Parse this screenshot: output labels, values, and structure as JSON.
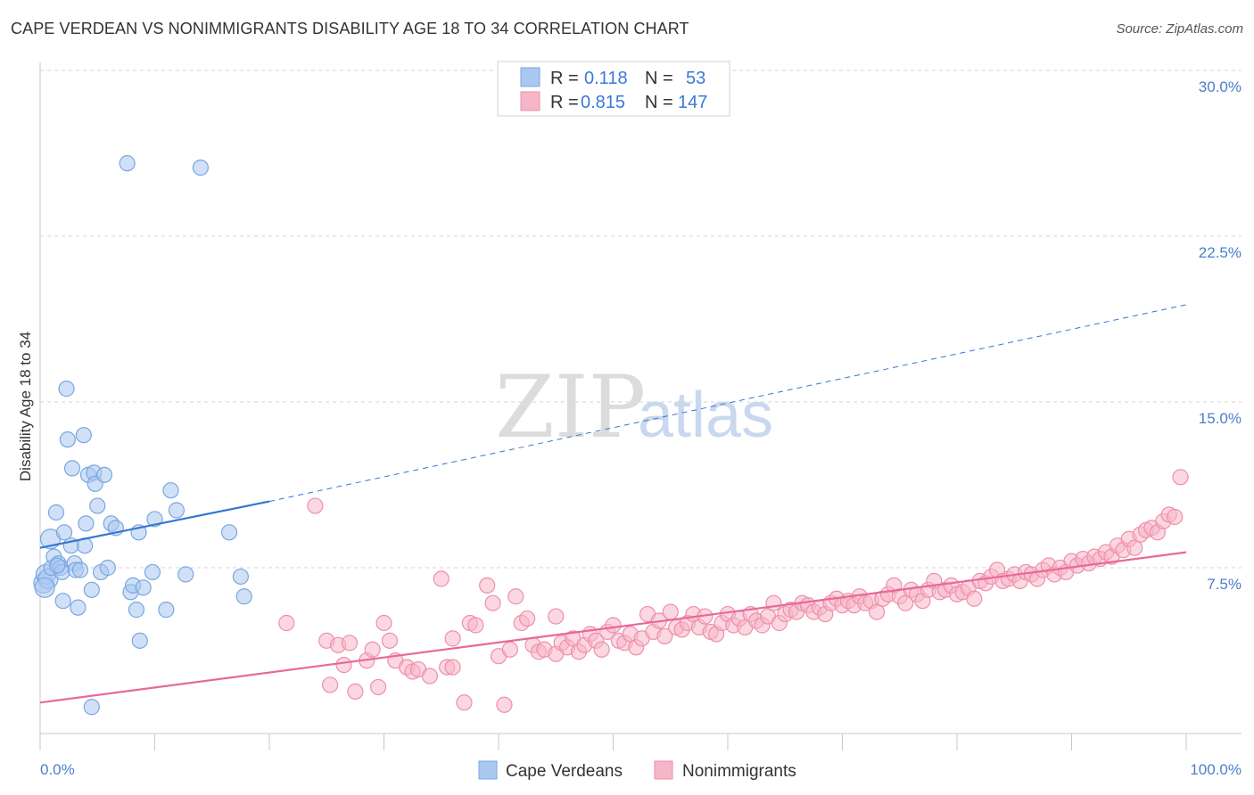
{
  "header": {
    "title": "CAPE VERDEAN VS NONIMMIGRANTS DISABILITY AGE 18 TO 34 CORRELATION CHART",
    "source": "Source: ZipAtlas.com"
  },
  "watermark": {
    "part1": "ZIP",
    "part2": "atlas"
  },
  "legend_top": [
    {
      "r_label": "R =",
      "r_value": "0.118",
      "n_label": "N =",
      "n_value": "53",
      "color": "#a9c8f0"
    },
    {
      "r_label": "R =",
      "r_value": "0.815",
      "n_label": "N =",
      "n_value": "147",
      "color": "#f7b6c8"
    }
  ],
  "legend_bottom": [
    {
      "label": "Cape Verdeans",
      "color": "#a9c8f0"
    },
    {
      "label": "Nonimmigrants",
      "color": "#f7b6c8"
    }
  ],
  "colors": {
    "blue_fill": "#a9c8f0",
    "blue_stroke": "#7aa6df",
    "blue_line": "#3576d3",
    "pink_fill": "#f7b6c8",
    "pink_stroke": "#ee8fab",
    "pink_line": "#e8689a",
    "tick_text": "#4a7fc8",
    "grid": "#d5d5d5"
  },
  "chart_data": {
    "type": "scatter",
    "title": "CAPE VERDEAN VS NONIMMIGRANTS DISABILITY AGE 18 TO 34 CORRELATION CHART",
    "xlabel": "",
    "ylabel": "Disability Age 18 to 34",
    "xlim": [
      0,
      100
    ],
    "ylim": [
      0,
      30
    ],
    "x_tick_labels": [
      "0.0%",
      "100.0%"
    ],
    "y_ticks": [
      7.5,
      15.0,
      22.5,
      30.0
    ],
    "y_tick_labels": [
      "7.5%",
      "15.0%",
      "22.5%",
      "30.0%"
    ],
    "grid": "horizontal dashed",
    "legend": "top-center",
    "series": [
      {
        "name": "Cape Verdeans",
        "R": 0.118,
        "N": 53,
        "trend": {
          "x": [
            0,
            20
          ],
          "y": [
            8.4,
            10.5
          ],
          "dashed_extension_to": [
            100,
            19.4
          ]
        },
        "points": [
          [
            0.3,
            6.8
          ],
          [
            0.5,
            7.2
          ],
          [
            0.7,
            7.0
          ],
          [
            0.9,
            8.8
          ],
          [
            1.0,
            7.5
          ],
          [
            1.2,
            8.0
          ],
          [
            1.4,
            10.0
          ],
          [
            1.6,
            7.7
          ],
          [
            1.8,
            7.5
          ],
          [
            1.9,
            7.3
          ],
          [
            2.0,
            6.0
          ],
          [
            2.1,
            9.1
          ],
          [
            2.3,
            15.6
          ],
          [
            2.4,
            13.3
          ],
          [
            2.7,
            8.5
          ],
          [
            2.8,
            12.0
          ],
          [
            3.0,
            7.7
          ],
          [
            3.1,
            7.4
          ],
          [
            3.3,
            5.7
          ],
          [
            3.5,
            7.4
          ],
          [
            3.8,
            13.5
          ],
          [
            3.9,
            8.5
          ],
          [
            4.0,
            9.5
          ],
          [
            4.2,
            11.7
          ],
          [
            4.5,
            6.5
          ],
          [
            4.7,
            11.8
          ],
          [
            4.8,
            11.3
          ],
          [
            5.0,
            10.3
          ],
          [
            5.3,
            7.3
          ],
          [
            5.6,
            11.7
          ],
          [
            5.9,
            7.5
          ],
          [
            6.2,
            9.5
          ],
          [
            6.6,
            9.3
          ],
          [
            7.6,
            25.8
          ],
          [
            7.9,
            6.4
          ],
          [
            8.1,
            6.7
          ],
          [
            8.4,
            5.6
          ],
          [
            8.6,
            9.1
          ],
          [
            8.7,
            4.2
          ],
          [
            9.0,
            6.6
          ],
          [
            9.8,
            7.3
          ],
          [
            10.0,
            9.7
          ],
          [
            11.0,
            5.6
          ],
          [
            11.4,
            11.0
          ],
          [
            11.9,
            10.1
          ],
          [
            12.7,
            7.2
          ],
          [
            14.0,
            25.6
          ],
          [
            16.5,
            9.1
          ],
          [
            17.5,
            7.1
          ],
          [
            17.8,
            6.2
          ],
          [
            0.4,
            6.6
          ],
          [
            4.5,
            1.2
          ],
          [
            1.5,
            7.6
          ]
        ]
      },
      {
        "name": "Nonimmigrants",
        "R": 0.815,
        "N": 147,
        "trend": {
          "x": [
            0,
            100
          ],
          "y": [
            1.4,
            8.2
          ]
        },
        "points": [
          [
            21.5,
            5.0
          ],
          [
            24.0,
            10.3
          ],
          [
            25.0,
            4.2
          ],
          [
            25.3,
            2.2
          ],
          [
            26.0,
            4.0
          ],
          [
            26.5,
            3.1
          ],
          [
            27.0,
            4.1
          ],
          [
            27.5,
            1.9
          ],
          [
            28.5,
            3.3
          ],
          [
            29.0,
            3.8
          ],
          [
            29.5,
            2.1
          ],
          [
            30.0,
            5.0
          ],
          [
            30.5,
            4.2
          ],
          [
            31.0,
            3.3
          ],
          [
            32.0,
            3.0
          ],
          [
            32.5,
            2.8
          ],
          [
            33.0,
            2.9
          ],
          [
            34.0,
            2.6
          ],
          [
            35.0,
            7.0
          ],
          [
            35.5,
            3.0
          ],
          [
            36.0,
            4.3
          ],
          [
            37.0,
            1.4
          ],
          [
            37.5,
            5.0
          ],
          [
            38.0,
            4.9
          ],
          [
            39.0,
            6.7
          ],
          [
            39.5,
            5.9
          ],
          [
            40.0,
            3.5
          ],
          [
            40.5,
            1.3
          ],
          [
            41.0,
            3.8
          ],
          [
            41.5,
            6.2
          ],
          [
            42.0,
            5.0
          ],
          [
            42.5,
            5.2
          ],
          [
            43.0,
            4.0
          ],
          [
            43.5,
            3.7
          ],
          [
            44.0,
            3.8
          ],
          [
            45.0,
            3.6
          ],
          [
            45.5,
            4.1
          ],
          [
            46.0,
            3.9
          ],
          [
            46.5,
            4.3
          ],
          [
            47.0,
            3.7
          ],
          [
            47.5,
            4.0
          ],
          [
            48.0,
            4.5
          ],
          [
            48.5,
            4.2
          ],
          [
            49.0,
            3.8
          ],
          [
            49.5,
            4.6
          ],
          [
            50.0,
            4.9
          ],
          [
            50.5,
            4.2
          ],
          [
            51.0,
            4.1
          ],
          [
            51.5,
            4.5
          ],
          [
            52.0,
            3.9
          ],
          [
            52.5,
            4.3
          ],
          [
            53.0,
            5.4
          ],
          [
            53.5,
            4.6
          ],
          [
            54.0,
            5.1
          ],
          [
            54.5,
            4.4
          ],
          [
            55.0,
            5.5
          ],
          [
            55.5,
            4.8
          ],
          [
            56.0,
            4.7
          ],
          [
            56.5,
            5.0
          ],
          [
            57.0,
            5.4
          ],
          [
            57.5,
            4.8
          ],
          [
            58.0,
            5.3
          ],
          [
            58.5,
            4.6
          ],
          [
            59.0,
            4.5
          ],
          [
            59.5,
            5.0
          ],
          [
            60.0,
            5.4
          ],
          [
            60.5,
            4.9
          ],
          [
            61.0,
            5.2
          ],
          [
            61.5,
            4.8
          ],
          [
            62.0,
            5.4
          ],
          [
            62.5,
            5.1
          ],
          [
            63.0,
            4.9
          ],
          [
            63.5,
            5.3
          ],
          [
            64.0,
            5.9
          ],
          [
            64.5,
            5.0
          ],
          [
            65.0,
            5.4
          ],
          [
            65.5,
            5.6
          ],
          [
            66.0,
            5.5
          ],
          [
            66.5,
            5.9
          ],
          [
            67.0,
            5.8
          ],
          [
            67.5,
            5.5
          ],
          [
            68.0,
            5.7
          ],
          [
            68.5,
            5.4
          ],
          [
            69.0,
            5.9
          ],
          [
            69.5,
            6.1
          ],
          [
            70.0,
            5.8
          ],
          [
            70.5,
            6.0
          ],
          [
            71.0,
            5.8
          ],
          [
            71.5,
            6.2
          ],
          [
            72.0,
            5.9
          ],
          [
            72.5,
            6.0
          ],
          [
            73.0,
            5.5
          ],
          [
            73.5,
            6.1
          ],
          [
            74.0,
            6.3
          ],
          [
            74.5,
            6.7
          ],
          [
            75.0,
            6.2
          ],
          [
            75.5,
            5.9
          ],
          [
            76.0,
            6.5
          ],
          [
            76.5,
            6.3
          ],
          [
            77.0,
            6.0
          ],
          [
            77.5,
            6.5
          ],
          [
            78.0,
            6.9
          ],
          [
            78.5,
            6.4
          ],
          [
            79.0,
            6.5
          ],
          [
            79.5,
            6.7
          ],
          [
            80.0,
            6.3
          ],
          [
            80.5,
            6.4
          ],
          [
            81.0,
            6.6
          ],
          [
            81.5,
            6.1
          ],
          [
            82.0,
            6.9
          ],
          [
            82.5,
            6.8
          ],
          [
            83.0,
            7.1
          ],
          [
            83.5,
            7.4
          ],
          [
            84.0,
            6.9
          ],
          [
            84.5,
            7.0
          ],
          [
            85.0,
            7.2
          ],
          [
            85.5,
            6.9
          ],
          [
            86.0,
            7.3
          ],
          [
            86.5,
            7.2
          ],
          [
            87.0,
            7.0
          ],
          [
            87.5,
            7.4
          ],
          [
            88.0,
            7.6
          ],
          [
            88.5,
            7.2
          ],
          [
            89.0,
            7.5
          ],
          [
            89.5,
            7.3
          ],
          [
            90.0,
            7.8
          ],
          [
            90.5,
            7.6
          ],
          [
            91.0,
            7.9
          ],
          [
            91.5,
            7.7
          ],
          [
            92.0,
            8.0
          ],
          [
            92.5,
            7.9
          ],
          [
            93.0,
            8.2
          ],
          [
            93.5,
            8.0
          ],
          [
            94.0,
            8.5
          ],
          [
            94.5,
            8.3
          ],
          [
            95.0,
            8.8
          ],
          [
            95.5,
            8.4
          ],
          [
            96.0,
            9.0
          ],
          [
            96.5,
            9.2
          ],
          [
            97.0,
            9.3
          ],
          [
            97.5,
            9.1
          ],
          [
            98.0,
            9.6
          ],
          [
            98.5,
            9.9
          ],
          [
            99.0,
            9.8
          ],
          [
            99.5,
            11.6
          ],
          [
            36.0,
            3.0
          ],
          [
            45.0,
            5.3
          ]
        ]
      }
    ]
  }
}
